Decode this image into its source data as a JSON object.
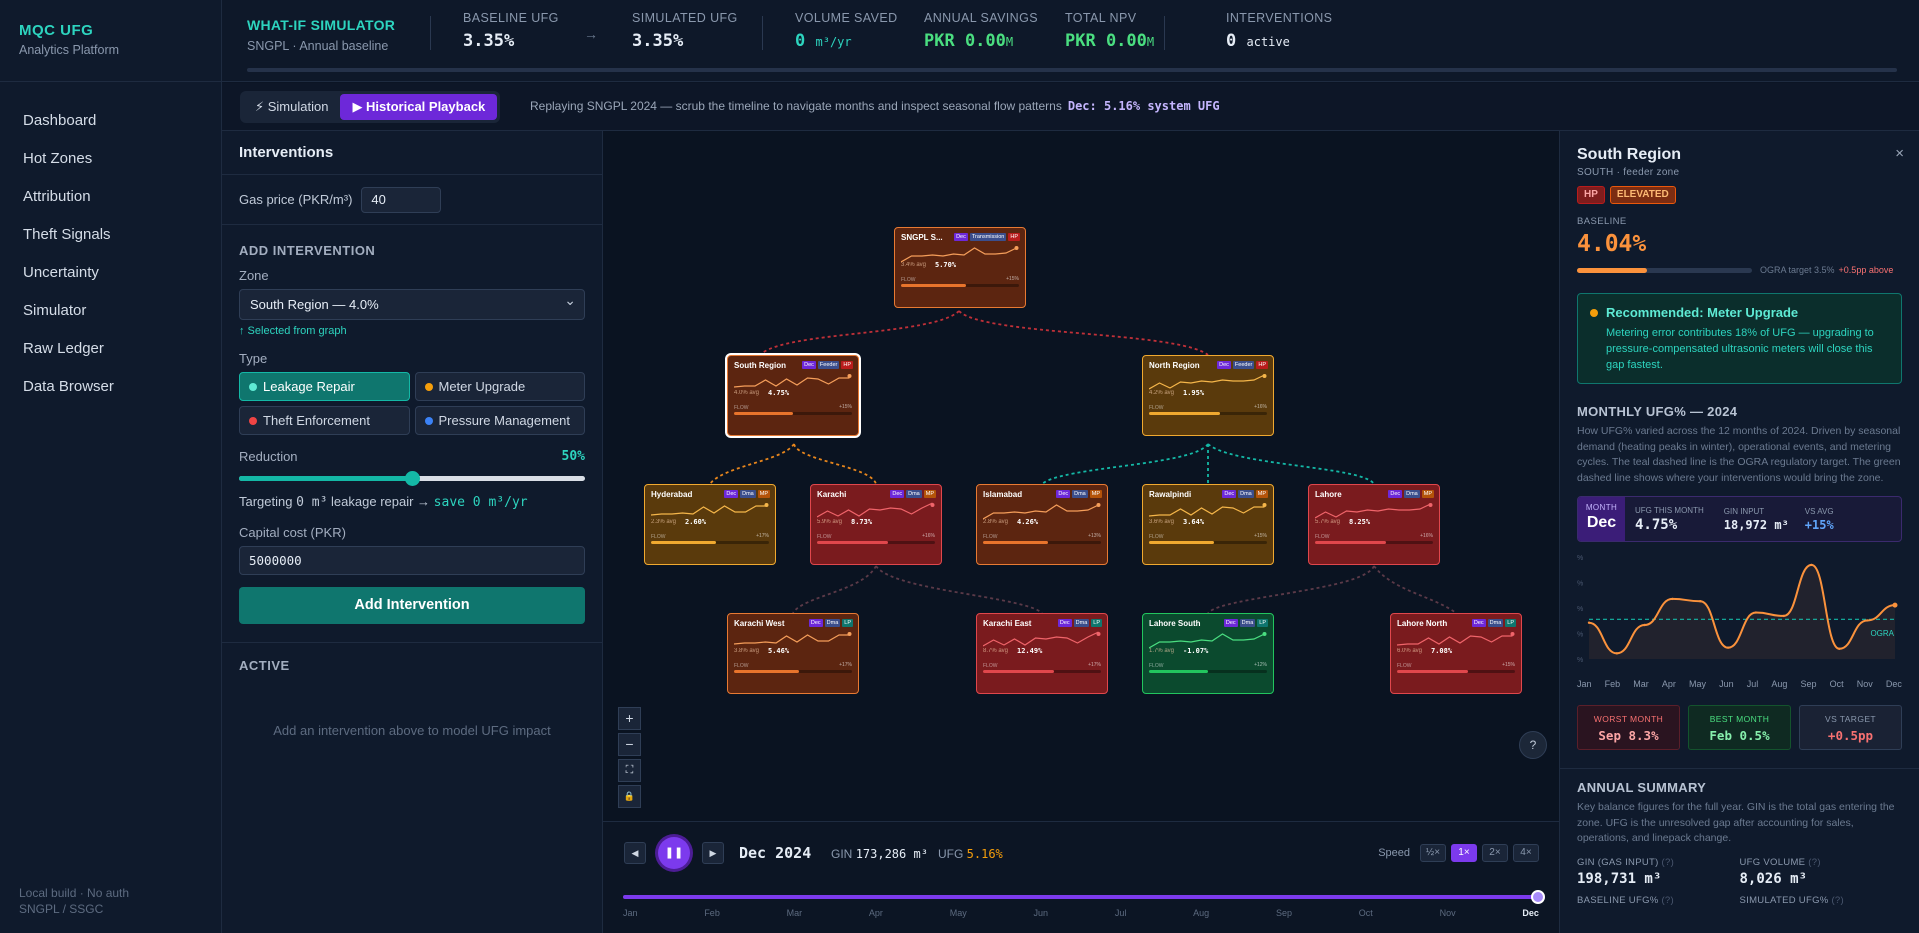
{
  "sidebar": {
    "brand": "MQC UFG",
    "sub": "Analytics Platform",
    "items": [
      "Dashboard",
      "Hot Zones",
      "Attribution",
      "Theft Signals",
      "Uncertainty",
      "Simulator",
      "Raw Ledger",
      "Data Browser"
    ],
    "footer1": "Local build · No auth",
    "footer2": "SNGPL / SSGC"
  },
  "topbar": {
    "title": "WHAT-IF SIMULATOR",
    "subtitle": "SNGPL · Annual baseline",
    "baseline_label": "BASELINE UFG",
    "baseline_value": "3.35%",
    "arrow": "→",
    "simulated_label": "SIMULATED UFG",
    "simulated_value": "3.35%",
    "volume_label": "VOLUME SAVED",
    "volume_value": "0",
    "volume_unit": "m³/yr",
    "savings_label": "ANNUAL SAVINGS",
    "savings_value": "PKR 0.00",
    "savings_unit": "M",
    "npv_label": "TOTAL NPV",
    "npv_value": "PKR 0.00",
    "npv_unit": "M",
    "interventions_label": "INTERVENTIONS",
    "interventions_value": "0",
    "interventions_unit": "active"
  },
  "modebar": {
    "simulation": "⚡ Simulation",
    "playback": "▶ Historical Playback",
    "text": "Replaying SNGPL 2024 — scrub the timeline to navigate months and inspect seasonal flow patterns",
    "status": "Dec: 5.16% system UFG"
  },
  "left": {
    "title": "Interventions",
    "gas_label": "Gas price (PKR/m³)",
    "gas_value": "40",
    "add_title": "ADD INTERVENTION",
    "zone_label": "Zone",
    "zone_value": "South Region — 4.0%",
    "zone_hint": "↑ Selected from graph",
    "type_label": "Type",
    "types": [
      "Leakage Repair",
      "Meter Upgrade",
      "Theft Enforcement",
      "Pressure Management"
    ],
    "type_colors": [
      "#14b8a6",
      "#f59e0b",
      "#ef4444",
      "#3b82f6"
    ],
    "reduction_label": "Reduction",
    "reduction_value": "50%",
    "reduction_fraction": 0.5,
    "targeting_prefix": "Targeting",
    "targeting_amount": "0 m³",
    "targeting_mid": "leakage repair →",
    "targeting_save": "save 0 m³/yr",
    "capital_label": "Capital cost (PKR)",
    "capital_value": "5000000",
    "add_button": "Add Intervention",
    "active_title": "ACTIVE",
    "empty_text": "Add an intervention above to model UFG impact"
  },
  "graph": {
    "nodes": [
      {
        "id": "sngpl",
        "name": "SNGPL S...",
        "badges": [
          "Dec",
          "Transmission",
          "HP"
        ],
        "avg": "3.4% avg",
        "value": "5.70%",
        "flow": "+15%",
        "color": "orange",
        "fill": 0.55
      },
      {
        "id": "south",
        "name": "South Region",
        "badges": [
          "Dec",
          "Feeder",
          "HP"
        ],
        "avg": "4.0% avg",
        "value": "4.75%",
        "flow": "+15%",
        "color": "orange",
        "fill": 0.5
      },
      {
        "id": "north",
        "name": "North Region",
        "badges": [
          "Dec",
          "Feeder",
          "HP"
        ],
        "avg": "4.2% avg",
        "value": "1.95%",
        "flow": "+16%",
        "color": "yellow",
        "fill": 0.6
      },
      {
        "id": "hyd",
        "name": "Hyderabad",
        "badges": [
          "Dec",
          "Dma",
          "MP"
        ],
        "avg": "2.3% avg",
        "value": "2.60%",
        "flow": "+17%",
        "color": "yellow",
        "fill": 0.55
      },
      {
        "id": "khi",
        "name": "Karachi",
        "badges": [
          "Dec",
          "Dma",
          "MP"
        ],
        "avg": "5.9% avg",
        "value": "8.73%",
        "flow": "+16%",
        "color": "red",
        "fill": 0.6
      },
      {
        "id": "isb",
        "name": "Islamabad",
        "badges": [
          "Dec",
          "Dma",
          "MP"
        ],
        "avg": "2.8% avg",
        "value": "4.26%",
        "flow": "+13%",
        "color": "orange",
        "fill": 0.55
      },
      {
        "id": "rwp",
        "name": "Rawalpindi",
        "badges": [
          "Dec",
          "Dma",
          "MP"
        ],
        "avg": "3.6% avg",
        "value": "3.64%",
        "flow": "+15%",
        "color": "yellow",
        "fill": 0.55
      },
      {
        "id": "lhr",
        "name": "Lahore",
        "badges": [
          "Dec",
          "Dma",
          "MP"
        ],
        "avg": "5.7% avg",
        "value": "8.25%",
        "flow": "+16%",
        "color": "red",
        "fill": 0.6
      },
      {
        "id": "khiw",
        "name": "Karachi West",
        "badges": [
          "Dec",
          "Dma",
          "LP"
        ],
        "avg": "3.8% avg",
        "value": "5.46%",
        "flow": "+17%",
        "color": "orange",
        "fill": 0.55
      },
      {
        "id": "khie",
        "name": "Karachi East",
        "badges": [
          "Dec",
          "Dma",
          "LP"
        ],
        "avg": "8.7% avg",
        "value": "12.49%",
        "flow": "+17%",
        "color": "red",
        "fill": 0.6
      },
      {
        "id": "lhrs",
        "name": "Lahore South",
        "badges": [
          "Dec",
          "Dma",
          "LP"
        ],
        "avg": "1.7% avg",
        "value": "-1.07%",
        "flow": "+12%",
        "color": "green",
        "fill": 0.5
      },
      {
        "id": "lhrn",
        "name": "Lahore North",
        "badges": [
          "Dec",
          "Dma",
          "LP"
        ],
        "avg": "6.0% avg",
        "value": "7.08%",
        "flow": "+15%",
        "color": "red",
        "fill": 0.6
      }
    ],
    "zoom_in": "+",
    "zoom_out": "−",
    "fit": "⛶",
    "lock": "🔒",
    "help": "?"
  },
  "playback": {
    "prev": "◀",
    "pause": "❚❚",
    "next": "▶",
    "date": "Dec 2024",
    "gin_label": "GIN",
    "gin_value": "173,286 m³",
    "ufg_label": "UFG",
    "ufg_value": "5.16%",
    "speed_label": "Speed",
    "speeds": [
      "½×",
      "1×",
      "2×",
      "4×"
    ],
    "months": [
      "Jan",
      "Feb",
      "Mar",
      "Apr",
      "May",
      "Jun",
      "Jul",
      "Aug",
      "Sep",
      "Oct",
      "Nov",
      "Dec"
    ],
    "progress": 1.0
  },
  "right": {
    "title": "South Region",
    "close": "×",
    "subtitle": "SOUTH · feeder zone",
    "chip_hp": "HP",
    "chip_status": "ELEVATED",
    "baseline_label": "BASELINE",
    "baseline_value": "4.04%",
    "ogra_target": "OGRA target 3.5%",
    "above": "+0.5pp above",
    "rec_title": "Recommended: Meter Upgrade",
    "rec_body": "Metering error contributes 18% of UFG — upgrading to pressure-compensated ultrasonic meters will close this gap fastest.",
    "monthly_title": "MONTHLY UFG% — 2024",
    "monthly_desc": "How UFG% varied across the 12 months of 2024. Driven by seasonal demand (heating peaks in winter), operational events, and metering cycles. The teal dashed line is the OGRA regulatory target. The green dashed line shows where your interventions would bring the zone.",
    "month_label": "MONTH",
    "month_value": "Dec",
    "ufg_month_label": "UFG THIS MONTH",
    "ufg_month_value": "4.75%",
    "gin_label": "GIN INPUT",
    "gin_value": "18,972 m³",
    "vs_avg_label": "VS AVG",
    "vs_avg_value": "+15%",
    "ogra_line_label": "OGRA",
    "worst_label": "WORST MONTH",
    "worst_value": "Sep 8.3%",
    "best_label": "BEST MONTH",
    "best_value": "Feb 0.5%",
    "vs_target_label": "VS TARGET",
    "vs_target_value": "+0.5pp",
    "annual_title": "ANNUAL SUMMARY",
    "annual_desc": "Key balance figures for the full year. GIN is the total gas entering the zone. UFG is the unresolved gap after accounting for sales, operations, and linepack change.",
    "gin_total_label": "GIN (GAS INPUT)",
    "gin_total_value": "198,731 m³",
    "ufg_volume_label": "UFG VOLUME",
    "ufg_volume_value": "8,026 m³",
    "baseline_pct_label": "BASELINE UFG%",
    "simulated_pct_label": "SIMULATED UFG%",
    "info": "(?)"
  },
  "chart_data": {
    "type": "line",
    "title": "MONTHLY UFG% — 2024",
    "categories": [
      "Jan",
      "Feb",
      "Mar",
      "Apr",
      "May",
      "Jun",
      "Jul",
      "Aug",
      "Sep",
      "Oct",
      "Nov",
      "Dec"
    ],
    "series": [
      {
        "values": [
          3.2,
          0.5,
          3.0,
          5.3,
          5.1,
          1.0,
          4.1,
          3.8,
          8.3,
          0.9,
          3.4,
          4.75
        ]
      }
    ],
    "target": 3.5,
    "ylim": [
      0,
      9
    ]
  },
  "colors": {
    "accent": "#2dd4bf",
    "purple": "#7c3aed",
    "orange": "#fb923c",
    "red": "#ef4444",
    "green": "#22c55e"
  }
}
